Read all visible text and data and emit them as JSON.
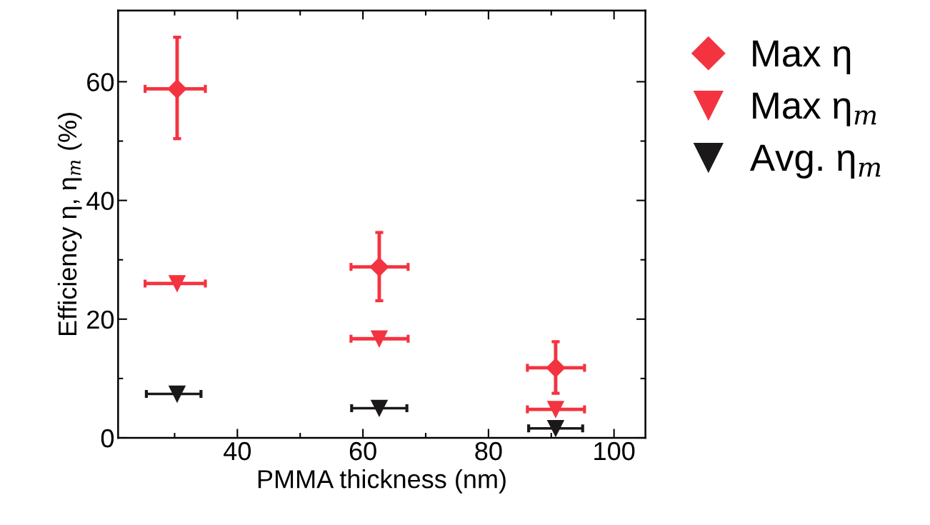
{
  "chart_data": {
    "type": "scatter",
    "xlabel": "PMMA thickness (nm)",
    "ylabel": "Efficiency η, η$_{m}$ (%)",
    "xlim": [
      21,
      105
    ],
    "ylim": [
      0,
      72
    ],
    "xticks": [
      40,
      60,
      80,
      100
    ],
    "yticks": [
      0,
      20,
      40,
      60
    ],
    "grid": false,
    "legend": "right",
    "series": [
      {
        "name": "Max η",
        "color": "#f43340",
        "marker": "diamond",
        "x": [
          30.4,
          62.6,
          90.7
        ],
        "values": [
          58.8,
          28.8,
          11.8
        ],
        "errors": [
          [
            50.4,
            67.5
          ],
          [
            23.1,
            34.6
          ],
          [
            7.5,
            16.2
          ]
        ],
        "xerrors": [
          [
            25.3,
            34.9
          ],
          [
            58.1,
            67.2
          ],
          [
            86.2,
            95.3
          ]
        ]
      },
      {
        "name": "Max η$_{m}$",
        "color": "#f43340",
        "marker": "triangle",
        "x": [
          30.4,
          62.6,
          90.7
        ],
        "values": [
          26.0,
          16.7,
          4.8
        ],
        "xerrors": [
          [
            25.3,
            34.9
          ],
          [
            58.1,
            67.2
          ],
          [
            86.2,
            95.3
          ]
        ]
      },
      {
        "name": "Avg. η$_{m}$",
        "color": "#1a1818",
        "marker": "triangle",
        "x": [
          30.4,
          62.6,
          90.7
        ],
        "values": [
          7.4,
          5.0,
          1.6
        ],
        "xerrors": [
          [
            25.5,
            34.2
          ],
          [
            58.2,
            67.0
          ],
          [
            86.4,
            95.0
          ]
        ]
      }
    ]
  }
}
